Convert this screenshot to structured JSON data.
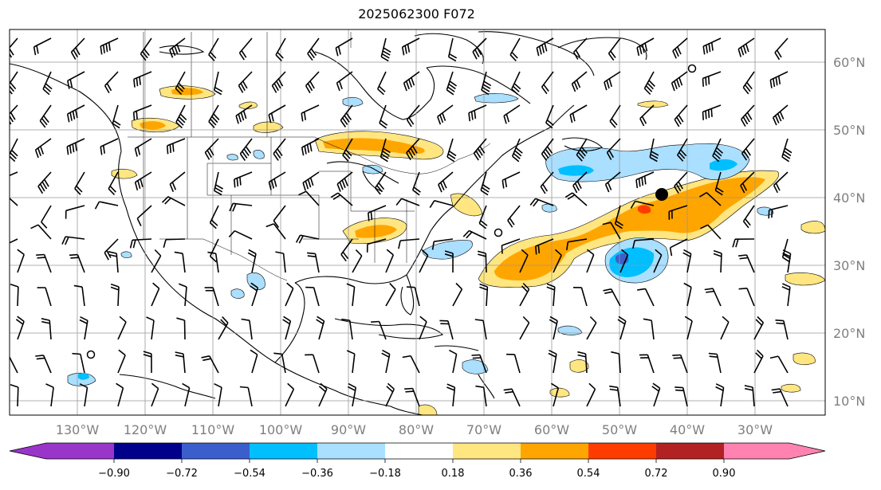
{
  "title": "2025062300 F072",
  "map": {
    "lat_labels": [
      "60°N",
      "50°N",
      "40°N",
      "30°N",
      "20°N",
      "10°N"
    ],
    "lon_labels": [
      "130°W",
      "120°W",
      "110°W",
      "100°W",
      "90°W",
      "80°W",
      "70°W",
      "60°W",
      "50°W",
      "40°W",
      "30°W"
    ]
  },
  "colorbar": {
    "colors": [
      "#9a35c9",
      "#00008b",
      "#3a5fcd",
      "#00bfff",
      "#aadfff",
      "#ffffff",
      "#ffe680",
      "#ffa500",
      "#ff3c00",
      "#b22222",
      "#ff82b0"
    ],
    "tick_labels": [
      "−0.90",
      "−0.72",
      "−0.54",
      "−0.36",
      "−0.18",
      "0.18",
      "0.36",
      "0.54",
      "0.72",
      "0.90"
    ]
  }
}
